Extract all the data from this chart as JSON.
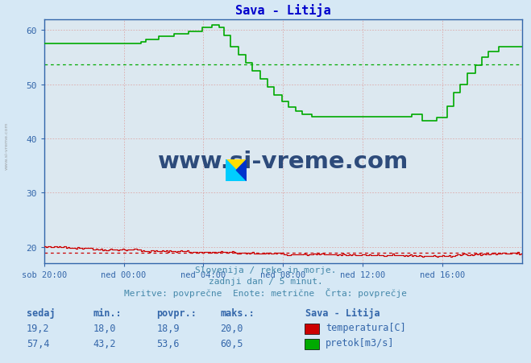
{
  "title": "Sava - Litija",
  "title_color": "#0000cc",
  "bg_color": "#d6e8f5",
  "plot_bg_color": "#dce8f0",
  "x_labels": [
    "sob 20:00",
    "ned 00:00",
    "ned 04:00",
    "ned 08:00",
    "ned 12:00",
    "ned 16:00"
  ],
  "x_ticks_norm": [
    0.0,
    0.1667,
    0.3333,
    0.5,
    0.6667,
    0.8333
  ],
  "y_min": 17.0,
  "y_max": 62.0,
  "y_ticks": [
    20,
    30,
    40,
    50,
    60
  ],
  "temp_color": "#cc0000",
  "flow_color": "#00aa00",
  "avg_temp": 18.9,
  "avg_flow": 53.6,
  "footer_line1": "Slovenija / reke in morje.",
  "footer_line2": "zadnji dan / 5 minut.",
  "footer_line3": "Meritve: povprečne  Enote: metrične  Črta: povprečje",
  "footer_color": "#4488aa",
  "label_color": "#3366aa",
  "watermark_text": "www.si-vreme.com",
  "watermark_color": "#1a3a6e",
  "legend_title": "Sava - Litija",
  "legend_items": [
    {
      "label": "temperatura[C]",
      "color": "#cc0000"
    },
    {
      "label": "pretok[m3/s]",
      "color": "#00aa00"
    }
  ],
  "stat_headers": [
    "sedaj",
    "min.:",
    "povpr.:",
    "maks.:"
  ],
  "temp_vals": [
    "19,2",
    "18,0",
    "18,9",
    "20,0"
  ],
  "flow_vals": [
    "57,4",
    "43,2",
    "53,6",
    "60,5"
  ],
  "n_points": 288
}
